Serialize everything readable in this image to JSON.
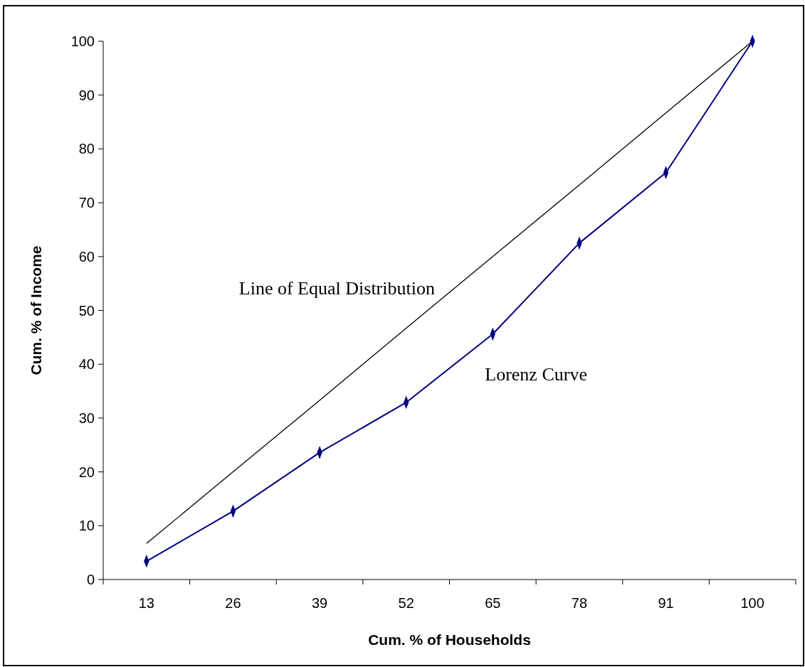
{
  "chart_data": {
    "type": "line",
    "xlabel": "Cum. % of Households",
    "ylabel": "Cum. % of Income",
    "categories": [
      "13",
      "26",
      "39",
      "52",
      "65",
      "78",
      "91",
      "100"
    ],
    "ylim": [
      0,
      100
    ],
    "yticks": [
      0,
      10,
      20,
      30,
      40,
      50,
      60,
      70,
      80,
      90,
      100
    ],
    "series": [
      {
        "name": "Line of Equal Distribution",
        "color": "#000000",
        "marker": "none",
        "values": [
          6.7,
          20,
          33.3,
          46.7,
          60,
          73.3,
          86.7,
          100
        ]
      },
      {
        "name": "Lorenz Curve",
        "color": "#000080",
        "marker": "diamond",
        "values": [
          3.4,
          12.7,
          23.6,
          32.9,
          45.6,
          62.5,
          75.6,
          100
        ]
      }
    ]
  }
}
